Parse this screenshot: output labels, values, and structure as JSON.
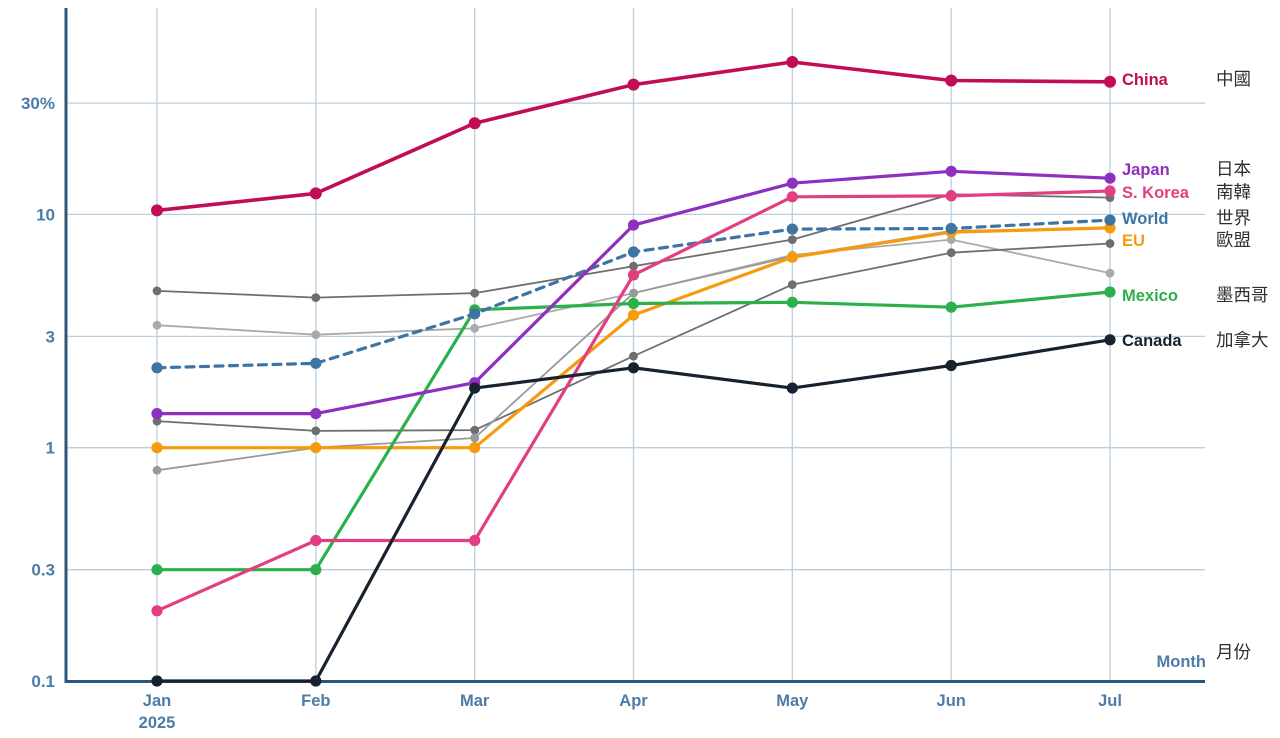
{
  "page": {
    "background": "#ffffff"
  },
  "chart_data": {
    "type": "line",
    "title": "",
    "xlabel": "Month",
    "xlabel_zh": "月份",
    "x_year": "2025",
    "x_categories": [
      "Jan",
      "Feb",
      "Mar",
      "Apr",
      "May",
      "Jun",
      "Jul"
    ],
    "yscale": "log",
    "ylim": [
      0.1,
      55
    ],
    "yticks": [
      0.3,
      1,
      3,
      10,
      30
    ],
    "ytick_labels": [
      "0.3",
      "1",
      "3",
      "10",
      "30%"
    ],
    "ybottom_tick": 0.1,
    "ybottom_label": "0.1",
    "grid": true,
    "colors": {
      "axis": "#2a577d",
      "gridline": "#b8cfe0",
      "tick_text": "#4d7ca8",
      "zh_text": "#2f2f2f"
    },
    "series": [
      {
        "name": "China",
        "name_zh": "中國",
        "color": "#c00d56",
        "dashed": false,
        "values": [
          10.4,
          12.3,
          24.6,
          36.0,
          45.0,
          37.5,
          37.0
        ]
      },
      {
        "name": "Japan",
        "name_zh": "日本",
        "color": "#8d2fbf",
        "dashed": false,
        "values": [
          1.4,
          1.4,
          1.9,
          9.0,
          13.6,
          15.3,
          14.3
        ]
      },
      {
        "name": "S. Korea",
        "name_zh": "南韓",
        "color": "#e23e82",
        "dashed": false,
        "values": [
          0.2,
          0.4,
          0.4,
          5.5,
          11.9,
          12.0,
          12.6
        ]
      },
      {
        "name": "World",
        "name_zh": "世界",
        "color": "#3e74a3",
        "dashed": true,
        "values": [
          2.2,
          2.3,
          3.75,
          6.9,
          8.65,
          8.7,
          9.45
        ]
      },
      {
        "name": "EU",
        "name_zh": "歐盟",
        "color": "#f79b0e",
        "dashed": false,
        "values": [
          1.0,
          1.0,
          1.0,
          3.7,
          6.55,
          8.4,
          8.75
        ]
      },
      {
        "name": "Mexico",
        "name_zh": "墨西哥",
        "color": "#2cb04b",
        "dashed": false,
        "values": [
          0.3,
          0.3,
          3.9,
          4.15,
          4.2,
          4.0,
          4.65
        ]
      },
      {
        "name": "Canada",
        "name_zh": "加拿大",
        "color": "#17222e",
        "dashed": false,
        "values": [
          0.1,
          0.1,
          1.8,
          2.2,
          1.8,
          2.25,
          2.9
        ]
      },
      {
        "name": "unlabeled-1",
        "color": "#6e6e6e",
        "dashed": false,
        "values": [
          4.7,
          4.4,
          4.6,
          6.0,
          7.8,
          12.2,
          11.8
        ]
      },
      {
        "name": "unlabeled-2",
        "color": "#aaaaaa",
        "dashed": false,
        "values": [
          3.35,
          3.05,
          3.25,
          4.6,
          6.7,
          7.8,
          5.6
        ]
      },
      {
        "name": "unlabeled-3",
        "color": "#6e6e6e",
        "dashed": false,
        "values": [
          1.3,
          1.18,
          1.19,
          2.47,
          5.0,
          6.85,
          7.5
        ]
      },
      {
        "name": "unlabeled-4",
        "color": "#999999",
        "dashed": false,
        "values": [
          0.8,
          1.0,
          1.1,
          4.6,
          6.6,
          8.5,
          8.7
        ]
      }
    ]
  }
}
